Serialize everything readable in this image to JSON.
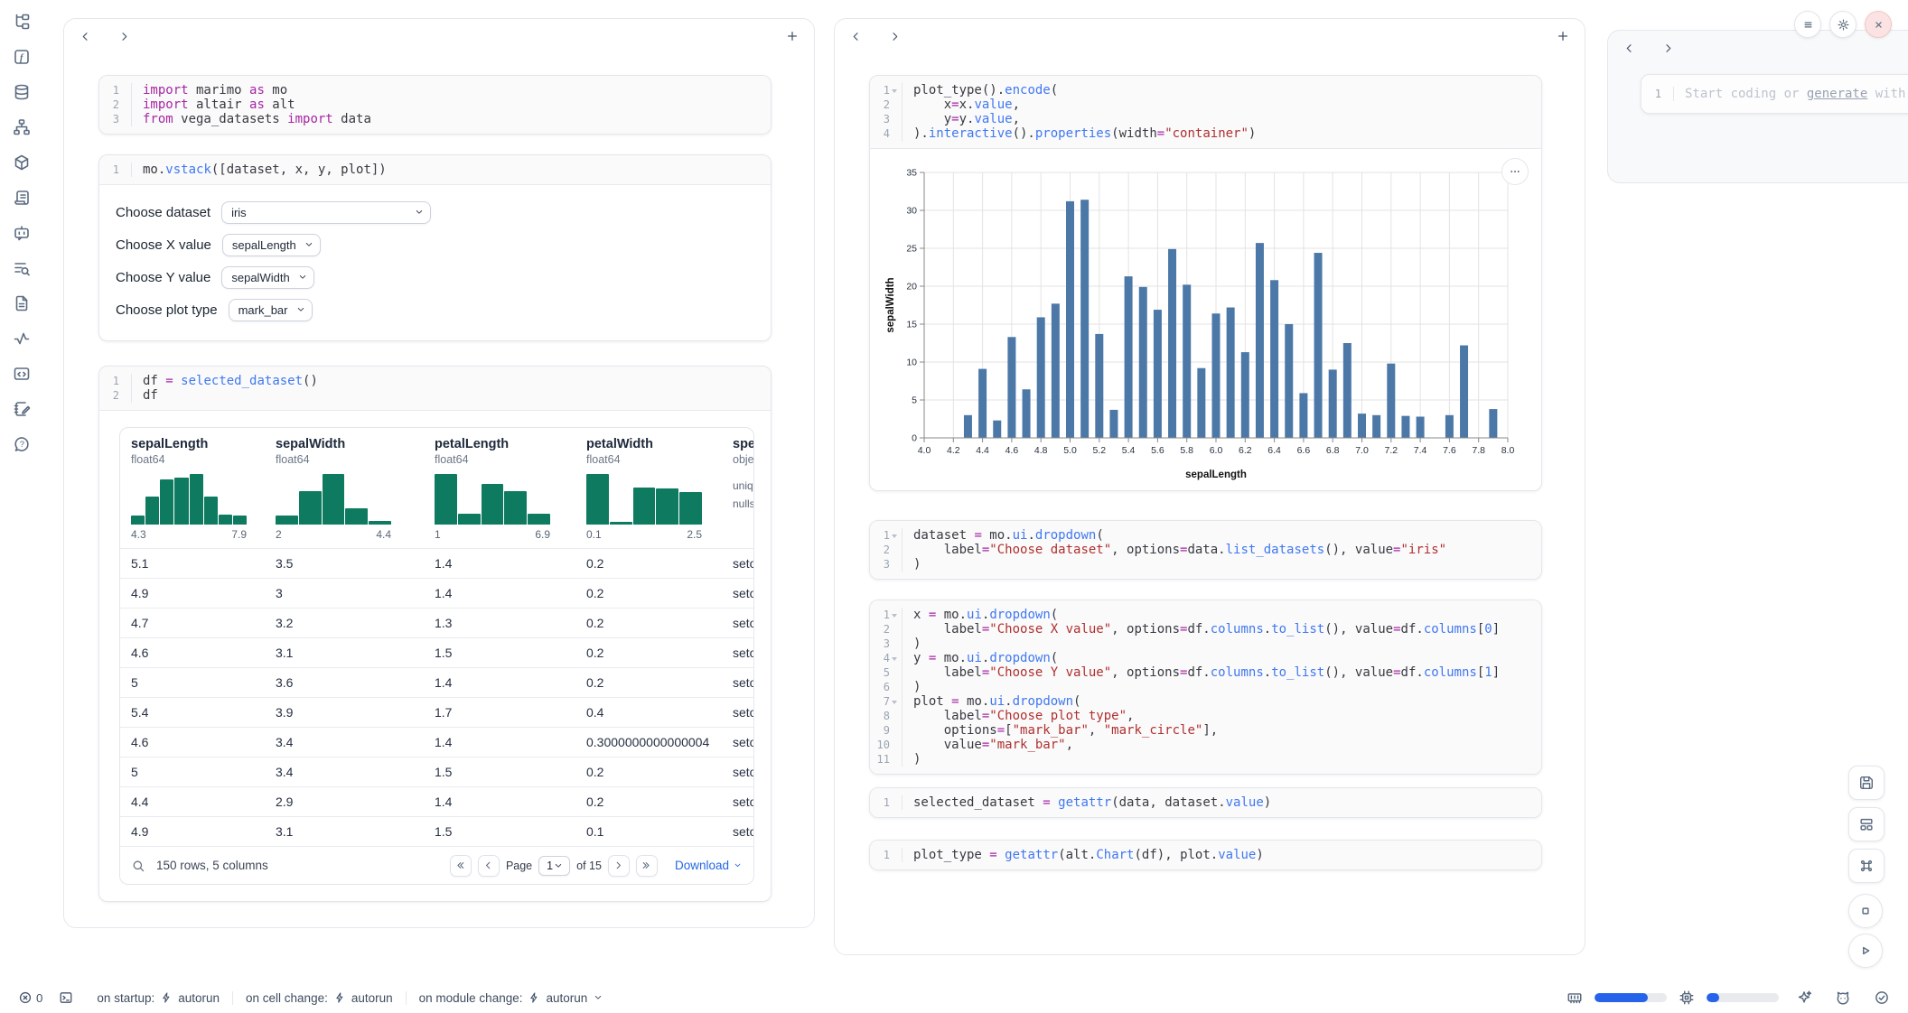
{
  "colors": {
    "accent_blue": "#2467e3",
    "chart_bar": "#4c78a8",
    "hist_teal": "#0e7b61",
    "close_red": "#d34b4b",
    "meter_fill": "#2563eb"
  },
  "sidebar": {
    "icons": [
      "file-tree",
      "function-square",
      "database",
      "org-chart",
      "package",
      "scroll",
      "bot",
      "list-search",
      "file-text",
      "activity",
      "code-window",
      "notebook-pen",
      "help"
    ]
  },
  "left_notebook": {
    "cells": {
      "imports": {
        "fold": [],
        "lines": [
          [
            [
              "k",
              "import"
            ],
            [
              "p",
              " marimo "
            ],
            [
              "k",
              "as"
            ],
            [
              "p",
              " mo"
            ]
          ],
          [
            [
              "k",
              "import"
            ],
            [
              "p",
              " altair "
            ],
            [
              "k",
              "as"
            ],
            [
              "p",
              " alt"
            ]
          ],
          [
            [
              "k",
              "from"
            ],
            [
              "p",
              " vega_datasets "
            ],
            [
              "k",
              "import"
            ],
            [
              "p",
              " data"
            ]
          ]
        ]
      },
      "vstack": {
        "fold": [],
        "lines": [
          [
            [
              "p",
              "mo."
            ],
            [
              "f",
              "vstack"
            ],
            [
              "p",
              "([dataset, x, y, plot])"
            ]
          ]
        ]
      },
      "df": {
        "fold": [],
        "lines": [
          [
            [
              "p",
              "df "
            ],
            [
              "o",
              "="
            ],
            [
              "p",
              " "
            ],
            [
              "f",
              "selected_dataset"
            ],
            [
              "p",
              "()"
            ]
          ],
          [
            [
              "p",
              "df"
            ]
          ]
        ]
      }
    },
    "controls": [
      {
        "label": "Choose dataset",
        "value": "iris",
        "wide": true
      },
      {
        "label": "Choose X value",
        "value": "sepalLength",
        "wide": false
      },
      {
        "label": "Choose Y value",
        "value": "sepalWidth",
        "wide": false
      },
      {
        "label": "Choose plot type",
        "value": "mark_bar",
        "wide": false
      }
    ],
    "table": {
      "columns": [
        {
          "name": "sepalLength",
          "type": "float64",
          "min": "4.3",
          "max": "7.9",
          "hist": [
            0.18,
            0.55,
            0.9,
            0.93,
            1.0,
            0.55,
            0.2,
            0.18
          ]
        },
        {
          "name": "sepalWidth",
          "type": "float64",
          "min": "2",
          "max": "4.4",
          "hist": [
            0.17,
            0.66,
            1.0,
            0.32,
            0.07
          ]
        },
        {
          "name": "petalLength",
          "type": "float64",
          "min": "1",
          "max": "6.9",
          "hist": [
            1.0,
            0.22,
            0.8,
            0.66,
            0.22
          ]
        },
        {
          "name": "petalWidth",
          "type": "float64",
          "min": "0.1",
          "max": "2.5",
          "hist": [
            1.0,
            0.05,
            0.74,
            0.72,
            0.64
          ]
        },
        {
          "name": "species",
          "type": "object",
          "meta": [
            "unique:",
            "nulls:"
          ]
        }
      ],
      "rows": [
        [
          "5.1",
          "3.5",
          "1.4",
          "0.2",
          "setosa"
        ],
        [
          "4.9",
          "3",
          "1.4",
          "0.2",
          "setosa"
        ],
        [
          "4.7",
          "3.2",
          "1.3",
          "0.2",
          "setosa"
        ],
        [
          "4.6",
          "3.1",
          "1.5",
          "0.2",
          "setosa"
        ],
        [
          "5",
          "3.6",
          "1.4",
          "0.2",
          "setosa"
        ],
        [
          "5.4",
          "3.9",
          "1.7",
          "0.4",
          "setosa"
        ],
        [
          "4.6",
          "3.4",
          "1.4",
          "0.3000000000000004",
          "setosa"
        ],
        [
          "5",
          "3.4",
          "1.5",
          "0.2",
          "setosa"
        ],
        [
          "4.4",
          "2.9",
          "1.4",
          "0.2",
          "setosa"
        ],
        [
          "4.9",
          "3.1",
          "1.5",
          "0.1",
          "setosa"
        ]
      ],
      "footer": {
        "summary": "150 rows, 5 columns",
        "page_label": "Page",
        "page": "1",
        "of_label": "of 15",
        "download": "Download"
      }
    }
  },
  "middle_notebook": {
    "cells": {
      "plot": {
        "fold": [
          1
        ],
        "lines": [
          [
            [
              "p",
              "plot_type"
            ],
            [
              "p",
              "()."
            ],
            [
              "f",
              "encode"
            ],
            [
              "p",
              "("
            ]
          ],
          [
            [
              "p",
              "    x"
            ],
            [
              "o",
              "="
            ],
            [
              "p",
              "x."
            ],
            [
              "f",
              "value"
            ],
            [
              "p",
              ","
            ]
          ],
          [
            [
              "p",
              "    y"
            ],
            [
              "o",
              "="
            ],
            [
              "p",
              "y."
            ],
            [
              "f",
              "value"
            ],
            [
              "p",
              ","
            ]
          ],
          [
            [
              "p",
              ")."
            ],
            [
              "f",
              "interactive"
            ],
            [
              "p",
              "()."
            ],
            [
              "f",
              "properties"
            ],
            [
              "p",
              "(width"
            ],
            [
              "o",
              "="
            ],
            [
              "s",
              "\"container\""
            ],
            [
              "p",
              ")"
            ]
          ]
        ]
      },
      "dataset": {
        "fold": [
          1
        ],
        "lines": [
          [
            [
              "p",
              "dataset "
            ],
            [
              "o",
              "="
            ],
            [
              "p",
              " mo."
            ],
            [
              "f",
              "ui"
            ],
            [
              "p",
              "."
            ],
            [
              "f",
              "dropdown"
            ],
            [
              "p",
              "("
            ]
          ],
          [
            [
              "p",
              "    label"
            ],
            [
              "o",
              "="
            ],
            [
              "s",
              "\"Choose dataset\""
            ],
            [
              "p",
              ", options"
            ],
            [
              "o",
              "="
            ],
            [
              "p",
              "data."
            ],
            [
              "f",
              "list_datasets"
            ],
            [
              "p",
              "(), value"
            ],
            [
              "o",
              "="
            ],
            [
              "s",
              "\"iris\""
            ]
          ],
          [
            [
              "p",
              ")"
            ]
          ]
        ]
      },
      "xyplot": {
        "fold": [
          1,
          4,
          7
        ],
        "lines": [
          [
            [
              "p",
              "x "
            ],
            [
              "o",
              "="
            ],
            [
              "p",
              " mo."
            ],
            [
              "f",
              "ui"
            ],
            [
              "p",
              "."
            ],
            [
              "f",
              "dropdown"
            ],
            [
              "p",
              "("
            ]
          ],
          [
            [
              "p",
              "    label"
            ],
            [
              "o",
              "="
            ],
            [
              "s",
              "\"Choose X value\""
            ],
            [
              "p",
              ", options"
            ],
            [
              "o",
              "="
            ],
            [
              "p",
              "df."
            ],
            [
              "f",
              "columns"
            ],
            [
              "p",
              "."
            ],
            [
              "f",
              "to_list"
            ],
            [
              "p",
              "(), value"
            ],
            [
              "o",
              "="
            ],
            [
              "p",
              "df."
            ],
            [
              "f",
              "columns"
            ],
            [
              "p",
              "["
            ],
            [
              "n",
              "0"
            ],
            [
              "p",
              "]"
            ]
          ],
          [
            [
              "p",
              ")"
            ]
          ],
          [
            [
              "p",
              "y "
            ],
            [
              "o",
              "="
            ],
            [
              "p",
              " mo."
            ],
            [
              "f",
              "ui"
            ],
            [
              "p",
              "."
            ],
            [
              "f",
              "dropdown"
            ],
            [
              "p",
              "("
            ]
          ],
          [
            [
              "p",
              "    label"
            ],
            [
              "o",
              "="
            ],
            [
              "s",
              "\"Choose Y value\""
            ],
            [
              "p",
              ", options"
            ],
            [
              "o",
              "="
            ],
            [
              "p",
              "df."
            ],
            [
              "f",
              "columns"
            ],
            [
              "p",
              "."
            ],
            [
              "f",
              "to_list"
            ],
            [
              "p",
              "(), value"
            ],
            [
              "o",
              "="
            ],
            [
              "p",
              "df."
            ],
            [
              "f",
              "columns"
            ],
            [
              "p",
              "["
            ],
            [
              "n",
              "1"
            ],
            [
              "p",
              "]"
            ]
          ],
          [
            [
              "p",
              ")"
            ]
          ],
          [
            [
              "p",
              "plot "
            ],
            [
              "o",
              "="
            ],
            [
              "p",
              " mo."
            ],
            [
              "f",
              "ui"
            ],
            [
              "p",
              "."
            ],
            [
              "f",
              "dropdown"
            ],
            [
              "p",
              "("
            ]
          ],
          [
            [
              "p",
              "    label"
            ],
            [
              "o",
              "="
            ],
            [
              "s",
              "\"Choose plot type\""
            ],
            [
              "p",
              ","
            ]
          ],
          [
            [
              "p",
              "    options"
            ],
            [
              "o",
              "="
            ],
            [
              "p",
              "["
            ],
            [
              "s",
              "\"mark_bar\""
            ],
            [
              "p",
              ", "
            ],
            [
              "s",
              "\"mark_circle\""
            ],
            [
              "p",
              "],"
            ]
          ],
          [
            [
              "p",
              "    value"
            ],
            [
              "o",
              "="
            ],
            [
              "s",
              "\"mark_bar\""
            ],
            [
              "p",
              ","
            ]
          ],
          [
            [
              "p",
              ")"
            ]
          ]
        ]
      },
      "selected": {
        "fold": [],
        "lines": [
          [
            [
              "p",
              "selected_dataset "
            ],
            [
              "o",
              "="
            ],
            [
              "p",
              " "
            ],
            [
              "f",
              "getattr"
            ],
            [
              "p",
              "(data, dataset."
            ],
            [
              "f",
              "value"
            ],
            [
              "p",
              ")"
            ]
          ]
        ]
      },
      "plottype": {
        "fold": [],
        "lines": [
          [
            [
              "p",
              "plot_type "
            ],
            [
              "o",
              "="
            ],
            [
              "p",
              " "
            ],
            [
              "f",
              "getattr"
            ],
            [
              "p",
              "(alt."
            ],
            [
              "f",
              "Chart"
            ],
            [
              "p",
              "(df), plot."
            ],
            [
              "f",
              "value"
            ],
            [
              "p",
              ")"
            ]
          ]
        ]
      }
    }
  },
  "right_notebook": {
    "cells": {
      "empty": {
        "fold": [],
        "lines": [
          [
            [
              "ph",
              "Start coding or "
            ],
            [
              "phu",
              "generate"
            ],
            [
              "ph",
              " with AI"
            ]
          ]
        ]
      }
    }
  },
  "chart_data": {
    "type": "bar",
    "x": [
      4.3,
      4.4,
      4.5,
      4.6,
      4.7,
      4.8,
      4.9,
      5.0,
      5.1,
      5.2,
      5.3,
      5.4,
      5.5,
      5.6,
      5.7,
      5.8,
      5.9,
      6.0,
      6.1,
      6.2,
      6.3,
      6.4,
      6.5,
      6.6,
      6.7,
      6.8,
      6.9,
      7.0,
      7.1,
      7.2,
      7.3,
      7.4,
      7.6,
      7.7,
      7.9
    ],
    "values": [
      3.0,
      9.1,
      2.3,
      13.3,
      6.4,
      15.9,
      17.7,
      31.2,
      31.4,
      13.7,
      3.7,
      21.3,
      19.9,
      16.9,
      24.9,
      20.2,
      9.2,
      16.4,
      17.2,
      11.3,
      25.7,
      20.8,
      15.0,
      5.9,
      24.4,
      9.0,
      12.5,
      3.2,
      3.0,
      9.8,
      2.9,
      2.8,
      3.0,
      12.2,
      3.8
    ],
    "xlabel": "sepalLength",
    "ylabel": "sepalWidth",
    "xlim": [
      4.0,
      8.0
    ],
    "ylim": [
      0,
      35
    ],
    "xtick_step": 0.2,
    "ytick_step": 5,
    "grid": true,
    "legend": "none",
    "bar_color": "#4c78a8"
  },
  "statusbar": {
    "error_count": "0",
    "groups": [
      {
        "label": "on startup:",
        "value": "autorun",
        "expandable": false
      },
      {
        "label": "on cell change:",
        "value": "autorun",
        "expandable": false
      },
      {
        "label": "on module change:",
        "value": "autorun",
        "expandable": true
      }
    ],
    "ram_pct": 74,
    "cpu_pct": 17
  }
}
